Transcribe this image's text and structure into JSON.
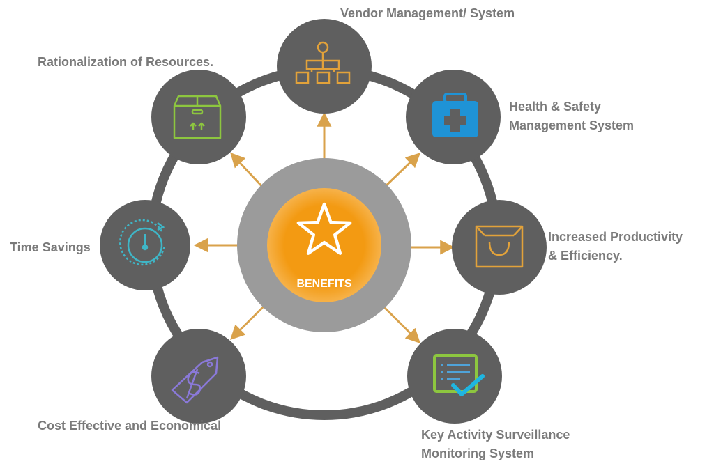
{
  "center": {
    "label": "BENEFITS",
    "icon": "star-icon"
  },
  "colors": {
    "ring": "#5f5f5f",
    "node": "#5f5f5f",
    "center_outer": "#9b9b9b",
    "center_inner": "#f39a12",
    "arrow": "#d9a24b",
    "label_text": "#7a7a7a"
  },
  "benefits": [
    {
      "id": "vendor",
      "lines": [
        "Vendor Management/ System"
      ],
      "icon": "org-chart-icon",
      "icon_color": "#e2a23a"
    },
    {
      "id": "health",
      "lines": [
        "Health & Safety",
        "Management System"
      ],
      "icon": "first-aid-kit-icon",
      "icon_color": "#1f93d6"
    },
    {
      "id": "productivity",
      "lines": [
        "Increased Productivity",
        "& Efficiency."
      ],
      "icon": "shopping-bag-icon",
      "icon_color": "#e2a23a"
    },
    {
      "id": "surveillance",
      "lines": [
        "Key Activity Surveillance",
        "Monitoring System"
      ],
      "icon": "checklist-icon",
      "icon_color": "#8dc63f"
    },
    {
      "id": "cost",
      "lines": [
        "Cost Effective and Economical"
      ],
      "icon": "price-tag-dollar-icon",
      "icon_color": "#8a79d8"
    },
    {
      "id": "time",
      "lines": [
        "Time Savings"
      ],
      "icon": "stopwatch-icon",
      "icon_color": "#3fb6c7"
    },
    {
      "id": "resources",
      "lines": [
        "Rationalization of Resources."
      ],
      "icon": "box-icon",
      "icon_color": "#8dc63f"
    }
  ]
}
